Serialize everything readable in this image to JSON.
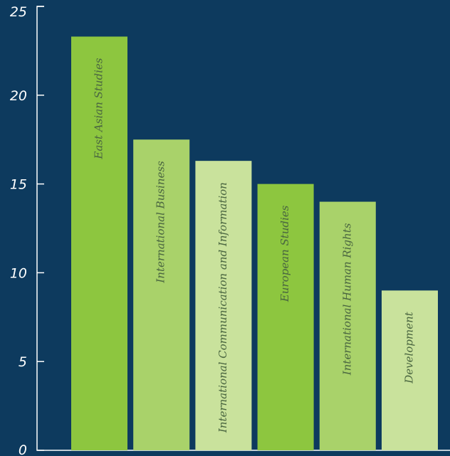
{
  "chart_data": {
    "type": "bar",
    "categories": [
      "East Asian Studies",
      "International Business",
      "International Communication and Information",
      "European Studies",
      "International Human Rights",
      "Development"
    ],
    "values": [
      23.3,
      17.5,
      16.3,
      15.0,
      14.0,
      9.0
    ],
    "ylim": [
      0,
      25
    ],
    "yticks": [
      0,
      5,
      10,
      15,
      20,
      25
    ],
    "ytick_labels": [
      "0",
      "5",
      "10",
      "15",
      "20",
      "25"
    ],
    "bar_colors": [
      "#8dc63f",
      "#a9d26a",
      "#c9e29c",
      "#8dc63f",
      "#a9d26a",
      "#c9e29c"
    ],
    "background": "#0d3a5e",
    "axis_color": "#ffffff",
    "label_color": "#4a6640",
    "grid": false,
    "legend": "none"
  }
}
